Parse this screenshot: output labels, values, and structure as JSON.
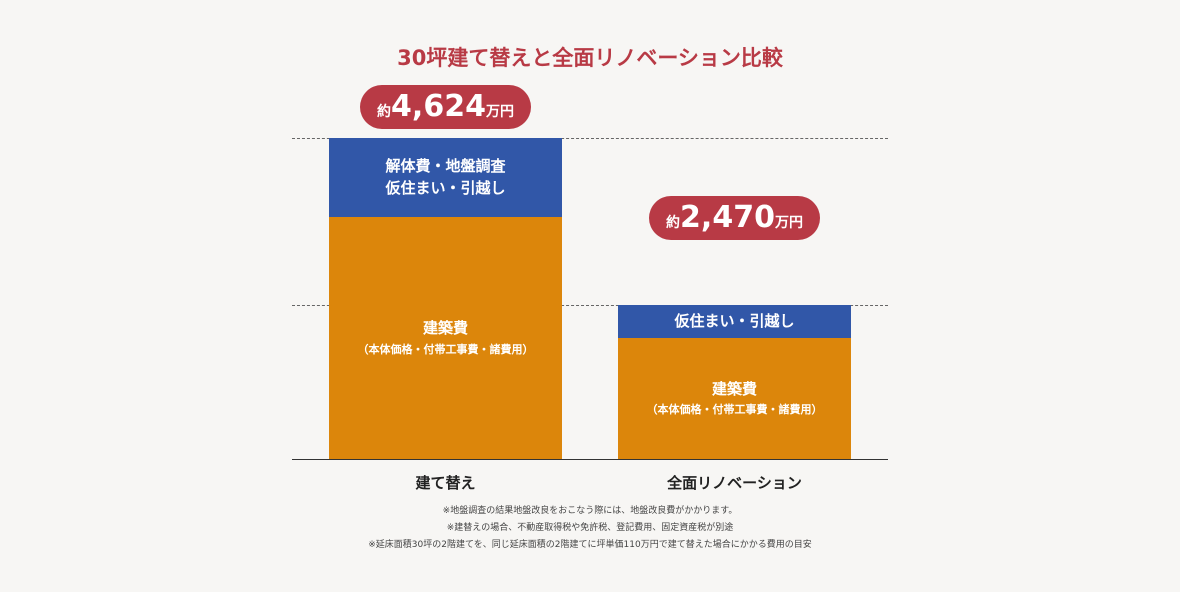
{
  "chart_data": {
    "type": "bar",
    "title": "30坪建て替えと全面リノベーション比較",
    "categories": [
      "建て替え",
      "全面リノベーション"
    ],
    "totals": [
      4624,
      2470
    ],
    "total_labels": [
      {
        "prefix": "約",
        "value": "4,624",
        "unit": "万円"
      },
      {
        "prefix": "約",
        "value": "2,470",
        "unit": "万円"
      }
    ],
    "series": [
      {
        "name": "建築費",
        "sub": "（本体価格・付帯工事費・諸費用）"
      },
      {
        "name_line1": "解体費・地盤調査",
        "name_line2": "仮住まい・引越し",
        "renov_name": "仮住まい・引越し"
      }
    ],
    "notes": [
      "※地盤調査の結果地盤改良をおこなう際には、地盤改良費がかかります。",
      "※建替えの場合、不動産取得税や免許税、登記費用、固定資産税が別途",
      "※延床面積30坪の2階建てを、同じ延床面積の2階建てに坪単価110万円で建て替えた場合にかかる費用の目安"
    ],
    "colors": {
      "title": "#b83a45",
      "construction": "#dc860b",
      "extra": "#3157a8",
      "total": "#b83a45"
    }
  }
}
